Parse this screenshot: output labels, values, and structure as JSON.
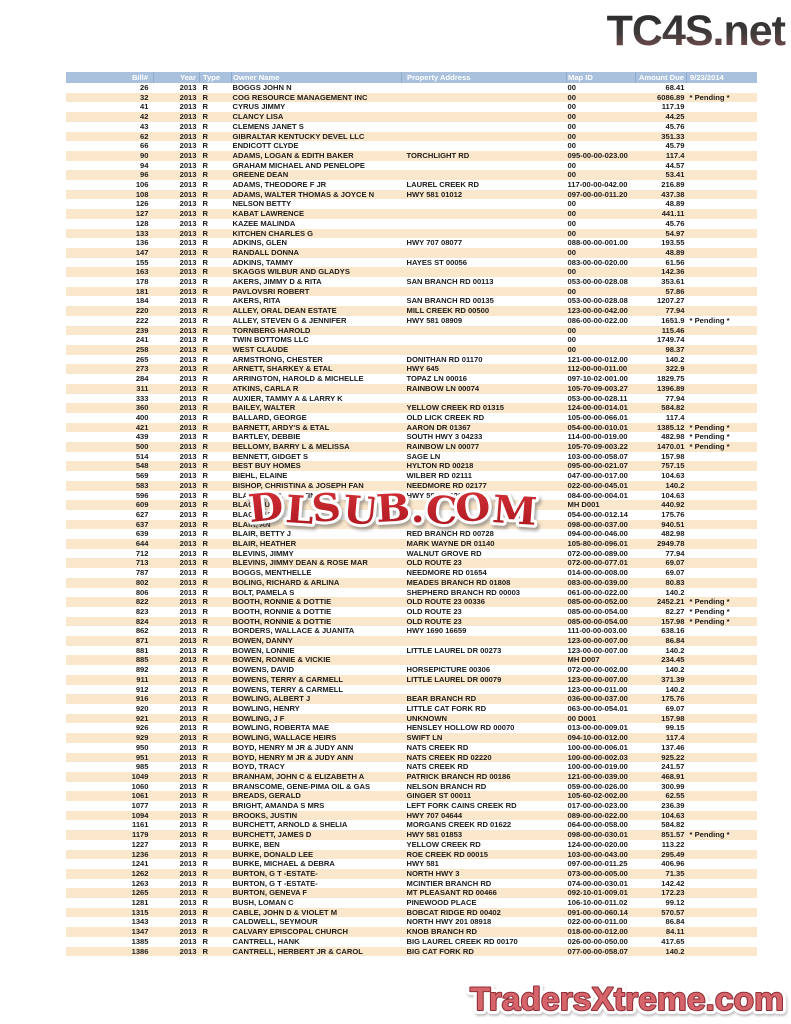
{
  "logo_top": "TC4S.net",
  "logo_bottom": "TradersXtreme.com",
  "watermark": "DLSUB.COM",
  "colors": {
    "header_bg": "#a9c1dc",
    "header_text": "#ffffff",
    "row_stripe": "#fbe7cb",
    "row_text": "#1b1b1b",
    "watermark_red": "#c6232b",
    "logo_top_gradient_top": "#262626",
    "logo_top_gradient_bottom": "#8a5252",
    "logo_bottom_fill": "#d5646b",
    "logo_bottom_outline": "#8e2d36"
  },
  "table": {
    "columns": [
      "Bill#",
      "Year",
      "Type",
      "Owner Name",
      "Property Address",
      "Map ID",
      "Amount Due",
      "9/23/2014"
    ],
    "column_keys": [
      "bill",
      "year",
      "type",
      "owner",
      "address",
      "map-id",
      "amount",
      "status"
    ],
    "rows": [
      [
        "26",
        "2013",
        "R",
        "BOGGS JOHN N",
        "",
        "00",
        "68.41",
        ""
      ],
      [
        "32",
        "2013",
        "R",
        "COG RESOURCE MANAGEMENT INC",
        "",
        "00",
        "6086.89",
        "* Pending *"
      ],
      [
        "41",
        "2013",
        "R",
        "CYRUS JIMMY",
        "",
        "00",
        "117.19",
        ""
      ],
      [
        "42",
        "2013",
        "R",
        "CLANCY LISA",
        "",
        "00",
        "44.25",
        ""
      ],
      [
        "43",
        "2013",
        "R",
        "CLEMENS JANET S",
        "",
        "00",
        "45.76",
        ""
      ],
      [
        "62",
        "2013",
        "R",
        "GIBRALTAR KENTUCKY DEVEL LLC",
        "",
        "00",
        "351.33",
        ""
      ],
      [
        "66",
        "2013",
        "R",
        "ENDICOTT CLYDE",
        "",
        "00",
        "45.79",
        ""
      ],
      [
        "90",
        "2013",
        "R",
        "ADAMS, LOGAN & EDITH BAKER",
        "TORCHLIGHT RD",
        "095-00-00-023.00",
        "117.4",
        ""
      ],
      [
        "94",
        "2013",
        "R",
        "GRAHAM MICHAEL AND PENELOPE",
        "",
        "00",
        "44.57",
        ""
      ],
      [
        "96",
        "2013",
        "R",
        "GREENE DEAN",
        "",
        "00",
        "53.41",
        ""
      ],
      [
        "106",
        "2013",
        "R",
        "ADAMS, THEODORE F JR",
        "LAUREL CREEK RD",
        "117-00-00-042.00",
        "216.89",
        ""
      ],
      [
        "108",
        "2013",
        "R",
        "ADAMS, WALTER THOMAS & JOYCE N",
        "HWY 581 01012",
        "097-00-00-011.20",
        "437.38",
        ""
      ],
      [
        "126",
        "2013",
        "R",
        "NELSON BETTY",
        "",
        "00",
        "48.89",
        ""
      ],
      [
        "127",
        "2013",
        "R",
        "KABAT LAWRENCE",
        "",
        "00",
        "441.11",
        ""
      ],
      [
        "128",
        "2013",
        "R",
        "KAZEE MALINDA",
        "",
        "00",
        "45.76",
        ""
      ],
      [
        "133",
        "2013",
        "R",
        "KITCHEN CHARLES G",
        "",
        "00",
        "54.97",
        ""
      ],
      [
        "136",
        "2013",
        "R",
        "ADKINS, GLEN",
        "HWY 707 08077",
        "088-00-00-001.00",
        "193.55",
        ""
      ],
      [
        "147",
        "2013",
        "R",
        "RANDALL DONNA",
        "",
        "00",
        "48.89",
        ""
      ],
      [
        "155",
        "2013",
        "R",
        "ADKINS, TAMMY",
        "HAYES ST 00056",
        "083-00-00-020.00",
        "61.56",
        ""
      ],
      [
        "163",
        "2013",
        "R",
        "SKAGGS WILBUR AND GLADYS",
        "",
        "00",
        "142.36",
        ""
      ],
      [
        "178",
        "2013",
        "R",
        "AKERS, JIMMY D & RITA",
        "SAN BRANCH RD 00113",
        "053-00-00-028.08",
        "353.61",
        ""
      ],
      [
        "181",
        "2013",
        "R",
        "PAVLOVSRI ROBERT",
        "",
        "00",
        "57.86",
        ""
      ],
      [
        "184",
        "2013",
        "R",
        "AKERS, RITA",
        "SAN BRANCH RD 00135",
        "053-00-00-028.08",
        "1207.27",
        ""
      ],
      [
        "220",
        "2013",
        "R",
        "ALLEY, ORAL DEAN ESTATE",
        "MILL CREEK RD 00500",
        "123-00-00-042.00",
        "77.94",
        ""
      ],
      [
        "222",
        "2013",
        "R",
        "ALLEY, STEVEN G & JENNIFER",
        "HWY 581 08909",
        "086-00-00-022.00",
        "1651.9",
        "* Pending *"
      ],
      [
        "239",
        "2013",
        "R",
        "TORNBERG HAROLD",
        "",
        "00",
        "115.46",
        ""
      ],
      [
        "241",
        "2013",
        "R",
        "TWIN BOTTOMS LLC",
        "",
        "00",
        "1749.74",
        ""
      ],
      [
        "258",
        "2013",
        "R",
        "WEST CLAUDE",
        "",
        "00",
        "98.37",
        ""
      ],
      [
        "265",
        "2013",
        "R",
        "ARMSTRONG, CHESTER",
        "DONITHAN RD 01170",
        "121-00-00-012.00",
        "140.2",
        ""
      ],
      [
        "273",
        "2013",
        "R",
        "ARNETT, SHARKEY & ETAL",
        "HWY 645",
        "112-00-00-011.00",
        "322.9",
        ""
      ],
      [
        "284",
        "2013",
        "R",
        "ARRINGTON, HAROLD & MICHELLE",
        "TOPAZ LN 00016",
        "097-10-02-001.00",
        "1829.75",
        ""
      ],
      [
        "311",
        "2013",
        "R",
        "ATKINS, CARLA R",
        "RAINBOW LN 00074",
        "105-70-09-003.27",
        "1396.89",
        ""
      ],
      [
        "333",
        "2013",
        "R",
        "AUXIER, TAMMY A & LARRY K",
        "",
        "053-00-00-028.11",
        "77.94",
        ""
      ],
      [
        "360",
        "2013",
        "R",
        "BAILEY, WALTER",
        "YELLOW CREEK RD 01315",
        "124-00-00-014.01",
        "584.82",
        ""
      ],
      [
        "400",
        "2013",
        "R",
        "BALLARD, GEORGE",
        "OLD LICK CREEK RD",
        "105-00-00-066.01",
        "117.4",
        ""
      ],
      [
        "421",
        "2013",
        "R",
        "BARNETT, ARDY'S & ETAL",
        "AARON DR 01367",
        "054-00-00-010.01",
        "1385.12",
        "* Pending *"
      ],
      [
        "439",
        "2013",
        "R",
        "BARTLEY, DEBBIE",
        "SOUTH HWY 3 04233",
        "114-00-00-019.00",
        "482.98",
        "* Pending *"
      ],
      [
        "500",
        "2013",
        "R",
        "BELLOMY, BARRY L & MELISSA",
        "RAINBOW LN 00077",
        "105-70-09-003.22",
        "1470.01",
        "* Pending *"
      ],
      [
        "514",
        "2013",
        "R",
        "BENNETT, GIDGET S",
        "SAGE LN",
        "103-00-00-058.07",
        "157.98",
        ""
      ],
      [
        "548",
        "2013",
        "R",
        "BEST BUY HOMES",
        "HYLTON RD 00218",
        "095-00-00-021.07",
        "757.15",
        ""
      ],
      [
        "569",
        "2013",
        "R",
        "BIEHL, ELAINE",
        "WILBER RD 02111",
        "047-00-00-017.00",
        "104.63",
        ""
      ],
      [
        "583",
        "2013",
        "R",
        "BISHOP, CHRISTINA & JOSEPH FAN",
        "NEEDMORE RD 02177",
        "022-00-00-045.01",
        "140.2",
        ""
      ],
      [
        "596",
        "2013",
        "R",
        "BLACKBURN, CRISTINA",
        "HWY 581 00020",
        "084-00-00-004.01",
        "104.63",
        ""
      ],
      [
        "609",
        "2013",
        "R",
        "BLACKBURN",
        "",
        "MH D001",
        "440.92",
        ""
      ],
      [
        "627",
        "2013",
        "R",
        "BLACKBURN",
        "",
        "054-00-00-012.14",
        "175.76",
        ""
      ],
      [
        "637",
        "2013",
        "R",
        "BLAIR, AN",
        "",
        "098-00-00-037.00",
        "940.51",
        ""
      ],
      [
        "639",
        "2013",
        "R",
        "BLAIR, BETTY J",
        "RED BRANCH RD 00728",
        "094-00-00-046.00",
        "482.98",
        ""
      ],
      [
        "644",
        "2013",
        "R",
        "BLAIR, HEATHER",
        "MARK WAYNE DR 01140",
        "105-80-00-096.01",
        "2949.78",
        ""
      ],
      [
        "712",
        "2013",
        "R",
        "BLEVINS, JIMMY",
        "WALNUT GROVE RD",
        "072-00-00-089.00",
        "77.94",
        ""
      ],
      [
        "713",
        "2013",
        "R",
        "BLEVINS, JIMMY DEAN & ROSE MAR",
        "OLD ROUTE 23",
        "072-00-00-077.01",
        "69.07",
        ""
      ],
      [
        "787",
        "2013",
        "R",
        "BOGGS, MENTHELLE",
        "NEEDMORE RD 01654",
        "014-00-00-008.00",
        "69.07",
        ""
      ],
      [
        "802",
        "2013",
        "R",
        "BOLING, RICHARD & ARLINA",
        "MEADES BRANCH RD 01808",
        "083-00-00-039.00",
        "80.83",
        ""
      ],
      [
        "806",
        "2013",
        "R",
        "BOLT, PAMELA S",
        "SHEPHERD BRANCH RD 00003",
        "061-00-00-022.00",
        "140.2",
        ""
      ],
      [
        "822",
        "2013",
        "R",
        "BOOTH, RONNIE & DOTTIE",
        "OLD ROUTE 23 00336",
        "085-00-00-052.00",
        "2452.21",
        "* Pending *"
      ],
      [
        "823",
        "2013",
        "R",
        "BOOTH, RONNIE & DOTTIE",
        "OLD ROUTE 23",
        "085-00-00-054.00",
        "82.27",
        "* Pending *"
      ],
      [
        "824",
        "2013",
        "R",
        "BOOTH, RONNIE & DOTTIE",
        "OLD ROUTE 23",
        "085-00-00-054.00",
        "157.98",
        "* Pending *"
      ],
      [
        "862",
        "2013",
        "R",
        "BORDERS, WALLACE & JUANITA",
        "HWY 1690 16659",
        "111-00-00-003.00",
        "638.16",
        ""
      ],
      [
        "871",
        "2013",
        "R",
        "BOWEN, DANNY",
        "",
        "123-00-00-007.00",
        "86.84",
        ""
      ],
      [
        "881",
        "2013",
        "R",
        "BOWEN, LONNIE",
        "LITTLE LAUREL DR 00273",
        "123-00-00-007.00",
        "140.2",
        ""
      ],
      [
        "885",
        "2013",
        "R",
        "BOWEN, RONNIE & VICKIE",
        "",
        "MH D007",
        "234.45",
        ""
      ],
      [
        "892",
        "2013",
        "R",
        "BOWENS, DAVID",
        "HORSEPICTURE 00306",
        "072-00-00-002.00",
        "140.2",
        ""
      ],
      [
        "911",
        "2013",
        "R",
        "BOWENS, TERRY & CARMELL",
        "LITTLE LAUREL DR 00079",
        "123-00-00-007.00",
        "371.39",
        ""
      ],
      [
        "912",
        "2013",
        "R",
        "BOWENS, TERRY & CARMELL",
        "",
        "123-00-00-011.00",
        "140.2",
        ""
      ],
      [
        "916",
        "2013",
        "R",
        "BOWLING, ALBERT J",
        "BEAR BRANCH RD",
        "036-00-00-037.00",
        "175.76",
        ""
      ],
      [
        "920",
        "2013",
        "R",
        "BOWLING, HENRY",
        "LITTLE CAT FORK RD",
        "063-00-00-054.01",
        "69.07",
        ""
      ],
      [
        "921",
        "2013",
        "R",
        "BOWLING, J F",
        "UNKNOWN",
        "00 D001",
        "157.98",
        ""
      ],
      [
        "926",
        "2013",
        "R",
        "BOWLING, ROBERTA MAE",
        "HENSLEY HOLLOW RD 00070",
        "013-00-00-009.01",
        "99.15",
        ""
      ],
      [
        "929",
        "2013",
        "R",
        "BOWLING, WALLACE HEIRS",
        "SWIFT LN",
        "094-10-00-012.00",
        "117.4",
        ""
      ],
      [
        "950",
        "2013",
        "R",
        "BOYD, HENRY M JR & JUDY ANN",
        "NATS CREEK RD",
        "100-00-00-006.01",
        "137.46",
        ""
      ],
      [
        "951",
        "2013",
        "R",
        "BOYD, HENRY M JR & JUDY ANN",
        "NATS CREEK RD 02220",
        "100-00-00-002.03",
        "925.22",
        ""
      ],
      [
        "985",
        "2013",
        "R",
        "BOYD, TRACY",
        "NATS CREEK RD",
        "100-00-00-019.00",
        "241.57",
        ""
      ],
      [
        "1049",
        "2013",
        "R",
        "BRANHAM, JOHN C & ELIZABETH A",
        "PATRICK BRANCH RD 00186",
        "121-00-00-039.00",
        "468.91",
        ""
      ],
      [
        "1060",
        "2013",
        "R",
        "BRANSCOME, GENE-PIMA OIL & GAS",
        "NELSON BRANCH RD",
        "059-00-00-026.00",
        "300.99",
        ""
      ],
      [
        "1061",
        "2013",
        "R",
        "BREADS, GERALD",
        "GINGER ST 00011",
        "105-60-02-002.00",
        "62.55",
        ""
      ],
      [
        "1077",
        "2013",
        "R",
        "BRIGHT, AMANDA S MRS",
        "LEFT FORK CAINS CREEK RD",
        "017-00-00-023.00",
        "236.39",
        ""
      ],
      [
        "1094",
        "2013",
        "R",
        "BROOKS, JUSTIN",
        "HWY 707 04644",
        "089-00-00-022.00",
        "104.63",
        ""
      ],
      [
        "1161",
        "2013",
        "R",
        "BURCHETT, ARNOLD & SHELIA",
        "MORGANS CREEK RD 01622",
        "064-00-00-058.00",
        "584.82",
        ""
      ],
      [
        "1179",
        "2013",
        "R",
        "BURCHETT, JAMES D",
        "HWY 581 01853",
        "098-00-00-030.01",
        "851.57",
        "* Pending *"
      ],
      [
        "1227",
        "2013",
        "R",
        "BURKE, BEN",
        "YELLOW CREEK RD",
        "124-00-00-020.00",
        "113.22",
        ""
      ],
      [
        "1236",
        "2013",
        "R",
        "BURKE, DONALD LEE",
        "ROE CREEK RD 00015",
        "103-00-00-043.00",
        "295.49",
        ""
      ],
      [
        "1241",
        "2013",
        "R",
        "BURKE, MICHAEL & DEBRA",
        "HWY 581",
        "097-00-00-011.25",
        "406.96",
        ""
      ],
      [
        "1262",
        "2013",
        "R",
        "BURTON, G T -ESTATE-",
        "NORTH HWY 3",
        "073-00-00-005.00",
        "71.35",
        ""
      ],
      [
        "1263",
        "2013",
        "R",
        "BURTON, G T -ESTATE-",
        "MCINTIER BRANCH RD",
        "074-00-00-030.01",
        "142.42",
        ""
      ],
      [
        "1265",
        "2013",
        "R",
        "BURTON, GENEVA F",
        "MT PLEASANT RD 00466",
        "092-10-01-009.01",
        "172.23",
        ""
      ],
      [
        "1281",
        "2013",
        "R",
        "BUSH, LOMAN C",
        "PINEWOOD PLACE",
        "106-10-00-011.02",
        "99.12",
        ""
      ],
      [
        "1315",
        "2013",
        "R",
        "CABLE, JOHN D & VIOLET M",
        "BOBCAT RIDGE RD 00402",
        "091-00-00-060.14",
        "570.57",
        ""
      ],
      [
        "1343",
        "2013",
        "R",
        "CALDWELL, SEYMOUR",
        "NORTH HWY 201 08918",
        "022-00-00-011.00",
        "86.84",
        ""
      ],
      [
        "1347",
        "2013",
        "R",
        "CALVARY EPISCOPAL CHURCH",
        "KNOB BRANCH RD",
        "018-00-00-012.00",
        "84.11",
        ""
      ],
      [
        "1385",
        "2013",
        "R",
        "CANTRELL, HANK",
        "BIG LAUREL CREEK RD 00170",
        "026-00-00-050.00",
        "417.65",
        ""
      ],
      [
        "1386",
        "2013",
        "R",
        "CANTRELL, HERBERT JR & CAROL",
        "BIG CAT FORK RD",
        "077-00-00-058.07",
        "140.2",
        ""
      ]
    ]
  }
}
